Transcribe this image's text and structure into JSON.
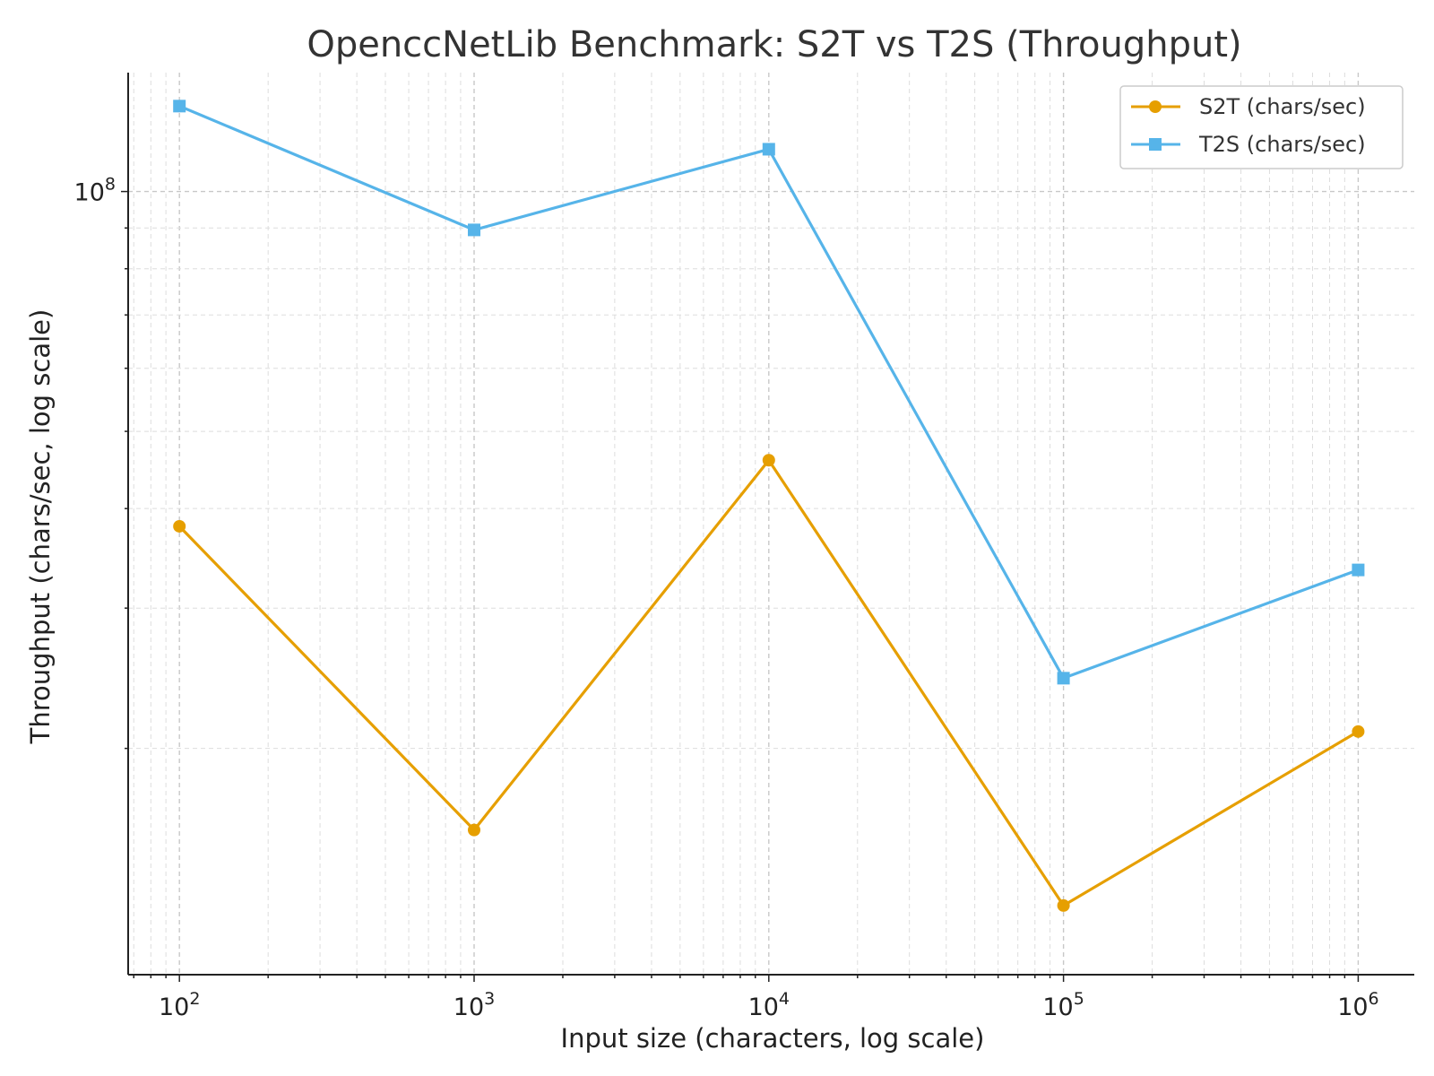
{
  "chart_data": {
    "type": "line",
    "title": "OpenccNetLib Benchmark: S2T vs T2S (Throughput)",
    "xlabel": "Input size (characters, log scale)",
    "ylabel": "Throughput (chars/sec, log scale)",
    "xscale": "log",
    "yscale": "log",
    "x": [
      100,
      1000,
      10000,
      100000,
      1000000
    ],
    "xlim": [
      67,
      1550000
    ],
    "ylim": [
      10400000,
      141000000
    ],
    "xticks": [
      {
        "base": "10",
        "exp": "2",
        "value": 100
      },
      {
        "base": "10",
        "exp": "3",
        "value": 1000
      },
      {
        "base": "10",
        "exp": "4",
        "value": 10000
      },
      {
        "base": "10",
        "exp": "5",
        "value": 100000
      },
      {
        "base": "10",
        "exp": "6",
        "value": 1000000
      }
    ],
    "yticks": [
      {
        "base": "10",
        "exp": "8",
        "value": 100000000
      }
    ],
    "grid": true,
    "legend_position": "top-right",
    "series": [
      {
        "name": "S2T (chars/sec)",
        "color": "#E69F00",
        "marker": "circle",
        "values": [
          38000000,
          15800000,
          46000000,
          12700000,
          21000000
        ]
      },
      {
        "name": "T2S (chars/sec)",
        "color": "#56B4E9",
        "marker": "square",
        "values": [
          128000000,
          89500000,
          113000000,
          24500000,
          33500000
        ]
      }
    ]
  }
}
